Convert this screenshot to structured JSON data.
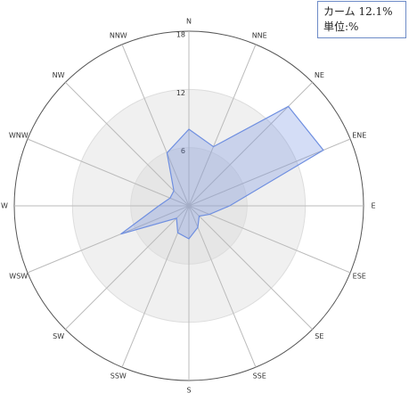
{
  "chart_data": {
    "type": "radar",
    "categories": [
      "N",
      "NNE",
      "NE",
      "ENE",
      "E",
      "ESE",
      "SE",
      "SSE",
      "S",
      "SSW",
      "SW",
      "WSW",
      "W",
      "WNW",
      "NW",
      "NNW"
    ],
    "values": [
      7.9,
      6.6,
      14.5,
      15.0,
      4.2,
      2.3,
      1.5,
      2.4,
      3.4,
      3.0,
      1.8,
      7.6,
      3.1,
      2.1,
      2.2,
      5.9
    ],
    "color": "#6f8fe0",
    "rlim": [
      0,
      18
    ],
    "rticks": [
      6,
      12,
      18
    ],
    "annotations": [
      "カーム 12.1%",
      "単位:%"
    ]
  }
}
